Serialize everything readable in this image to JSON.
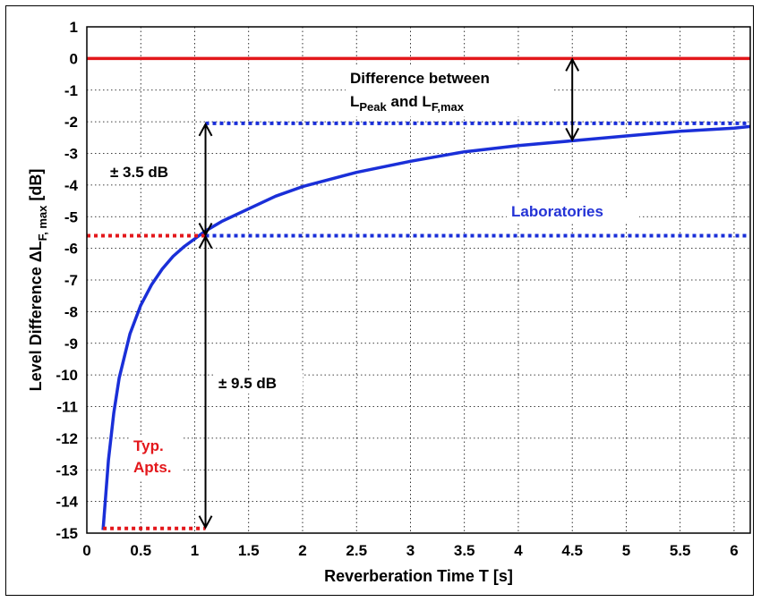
{
  "chart_data": {
    "type": "line",
    "xlabel": "Reverberation Time T [s]",
    "ylabel_main": "Level Difference  ΔL",
    "ylabel_sub": "F, max",
    "ylabel_unit": " [dB]",
    "xlim": [
      0,
      6.15
    ],
    "ylim": [
      -15,
      1
    ],
    "xticks": [
      0,
      0.5,
      1,
      1.5,
      2,
      2.5,
      3,
      3.5,
      4,
      4.5,
      5,
      5.5,
      6
    ],
    "xtick_labels": [
      "0",
      "0.5",
      "1",
      "1.5",
      "2",
      "2.5",
      "3",
      "3.5",
      "4",
      "4.5",
      "5",
      "5.5",
      "6"
    ],
    "yticks": [
      1,
      0,
      -1,
      -2,
      -3,
      -4,
      -5,
      -6,
      -7,
      -8,
      -9,
      -10,
      -11,
      -12,
      -13,
      -14,
      -15
    ],
    "ytick_labels": [
      "1",
      "0",
      "-1",
      "-2",
      "-3",
      "-4",
      "-5",
      "-6",
      "-7",
      "-8",
      "-9",
      "-10",
      "-11",
      "-12",
      "-13",
      "-14",
      "-15"
    ],
    "grid": true,
    "series": [
      {
        "color": "#1a2fd8",
        "style": "solid",
        "x": [
          0.15,
          0.2,
          0.25,
          0.3,
          0.4,
          0.5,
          0.6,
          0.7,
          0.8,
          0.9,
          1.0,
          1.1,
          1.25,
          1.5,
          1.75,
          2.0,
          2.5,
          3.0,
          3.5,
          4.0,
          4.5,
          5.0,
          5.5,
          6.0,
          6.15
        ],
        "y": [
          -14.9,
          -12.7,
          -11.2,
          -10.1,
          -8.7,
          -7.8,
          -7.15,
          -6.65,
          -6.25,
          -5.95,
          -5.7,
          -5.45,
          -5.15,
          -4.75,
          -4.35,
          -4.05,
          -3.6,
          -3.25,
          -2.95,
          -2.75,
          -2.6,
          -2.45,
          -2.3,
          -2.2,
          -2.15
        ]
      },
      {
        "color": "#e3171b",
        "style": "solid",
        "x": [
          0,
          6.15
        ],
        "y": [
          0,
          0
        ]
      },
      {
        "color": "#1a2fd8",
        "style": "dotted",
        "x": [
          1.1,
          6.15
        ],
        "y": [
          -2.05,
          -2.05
        ]
      },
      {
        "color": "#1a2fd8",
        "style": "dotted",
        "x": [
          1.1,
          6.15
        ],
        "y": [
          -5.6,
          -5.6
        ]
      },
      {
        "color": "#e3171b",
        "style": "dotted",
        "x": [
          0,
          1.1
        ],
        "y": [
          -5.6,
          -5.6
        ]
      },
      {
        "color": "#e3171b",
        "style": "dotted",
        "x": [
          0.15,
          1.1
        ],
        "y": [
          -14.85,
          -14.85
        ]
      }
    ],
    "arrows": [
      {
        "x": 4.5,
        "y_from": 0,
        "y_to": -2.6
      },
      {
        "x": 1.1,
        "y_from": -2.05,
        "y_to": -5.6
      },
      {
        "x": 1.1,
        "y_from": -5.6,
        "y_to": -14.85
      }
    ],
    "annotations": {
      "diff_line1": "Difference between",
      "diff_L1": "L",
      "diff_L1_sub": "Peak",
      "diff_and": " and L",
      "diff_L2_sub": "F,max",
      "pm35": "± 3.5 dB",
      "pm95": "± 9.5 dB",
      "laboratories": "Laboratories",
      "typ": "Typ.",
      "apts": "Apts."
    },
    "colors": {
      "red": "#e3171b",
      "blue": "#1a2fd8",
      "blue_label": "#2433d6"
    }
  }
}
